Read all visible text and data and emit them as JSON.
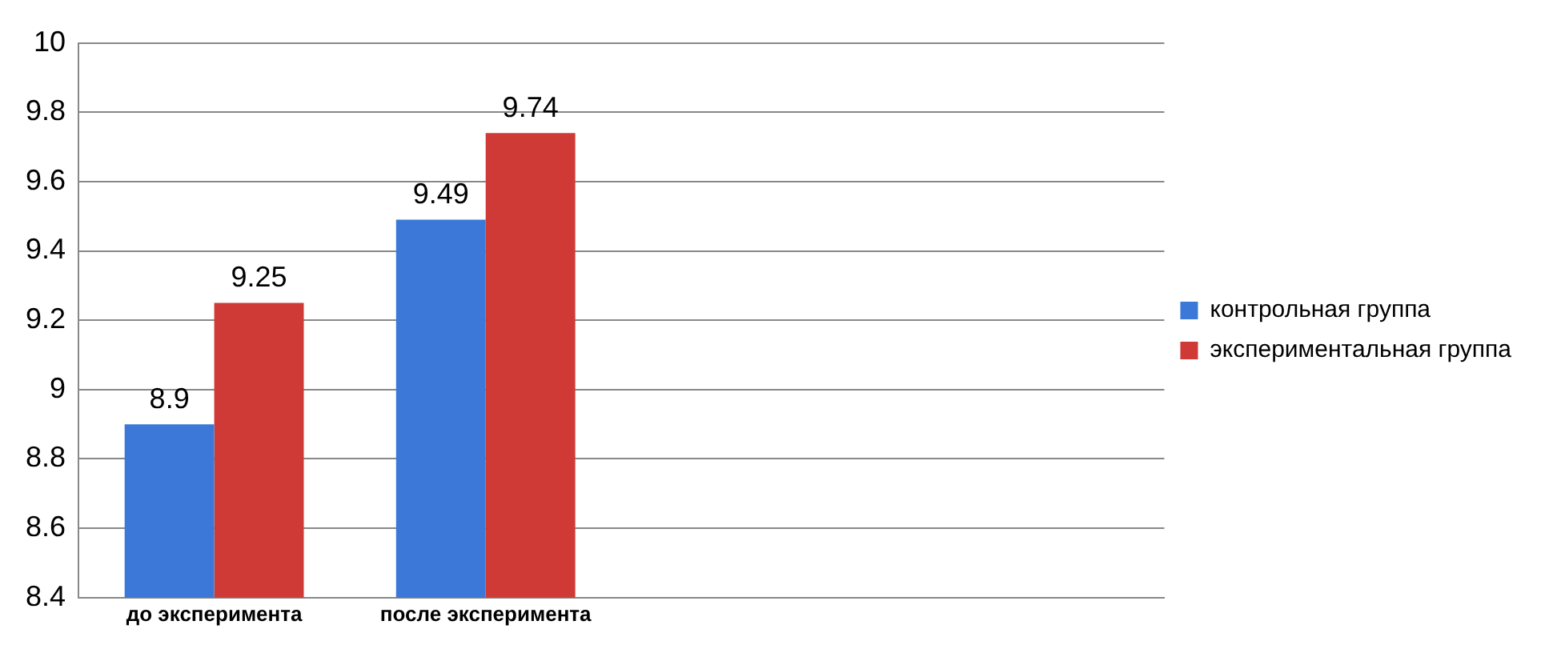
{
  "chart_data": {
    "type": "bar",
    "categories": [
      "до эксперимента",
      "после эксперимента",
      null,
      null
    ],
    "series": [
      {
        "name": "контрольная группа",
        "color": "#3b78d8",
        "values": [
          8.9,
          9.49,
          null,
          null
        ]
      },
      {
        "name": "экспериментальная группа",
        "color": "#d03a36",
        "values": [
          9.25,
          9.74,
          null,
          null
        ]
      }
    ],
    "ylim": [
      8.4,
      10
    ],
    "yticks": [
      8.4,
      8.6,
      8.8,
      9,
      9.2,
      9.4,
      9.6,
      9.8,
      10
    ],
    "grid": "y",
    "legend": "right",
    "data_labels": true
  }
}
